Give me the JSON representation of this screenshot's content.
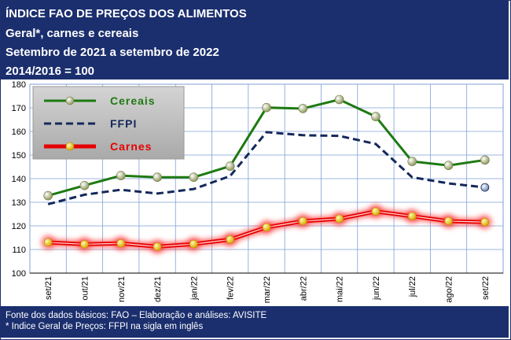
{
  "header": {
    "line1": "ÍNDICE FAO DE PREÇOS DOS ALIMENTOS",
    "line2": "Geral*, carnes e cereais",
    "line3": "Setembro de 2021 a setembro de 2022",
    "line4": "2014/2016 = 100"
  },
  "footer": {
    "line1": "Fonte dos dados básicos: FAO – Elaboração e análises: AVISITE",
    "line2": "* Indice Geral de Preços: FFPI na sigla em inglês"
  },
  "chart_data": {
    "type": "line",
    "title": "ÍNDICE FAO DE PREÇOS DOS ALIMENTOS",
    "categories": [
      "set/21",
      "out/21",
      "nov/21",
      "dez/21",
      "jan/22",
      "fev/22",
      "mar/22",
      "abr/22",
      "mai/22",
      "jun/22",
      "jul/22",
      "ago/22",
      "set/22"
    ],
    "ylim": [
      100,
      180
    ],
    "yticks": [
      100,
      110,
      120,
      130,
      140,
      150,
      160,
      170,
      180
    ],
    "grid": true,
    "legend_position": "top-left",
    "series": [
      {
        "name": "Cereais",
        "color": "#1e7a12",
        "values": [
          132.8,
          137.1,
          141.3,
          140.6,
          140.6,
          145.3,
          170.1,
          169.7,
          173.5,
          166.3,
          147.3,
          145.6,
          147.9
        ]
      },
      {
        "name": "FFPI",
        "color": "#14285a",
        "values": [
          129.2,
          133.2,
          135.3,
          133.7,
          135.6,
          141.1,
          159.7,
          158.4,
          158.1,
          154.7,
          140.6,
          138.0,
          136.3
        ]
      },
      {
        "name": "Carnes",
        "color": "#e60000",
        "values": [
          113.0,
          112.2,
          112.6,
          111.2,
          112.3,
          114.2,
          119.4,
          122.0,
          123.0,
          126.1,
          124.1,
          122.0,
          121.6
        ]
      }
    ]
  }
}
